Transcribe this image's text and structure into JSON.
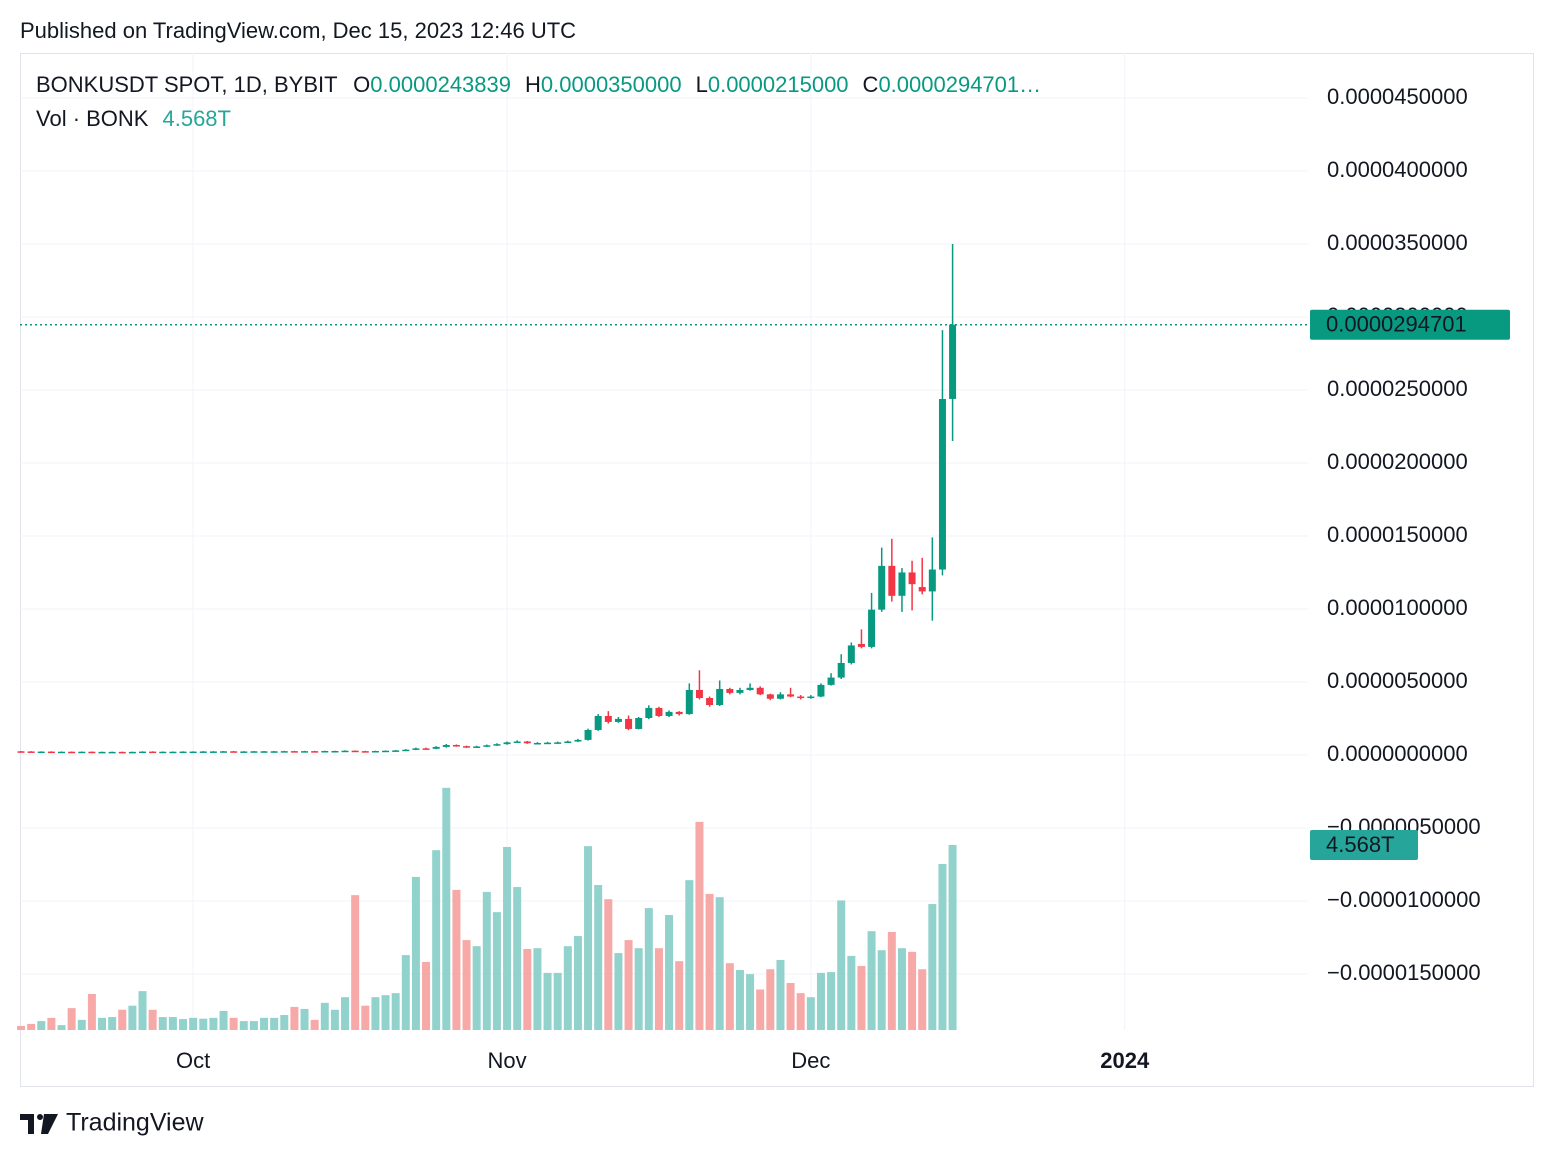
{
  "published": "Published on TradingView.com, Dec 15, 2023 12:46 UTC",
  "footer": "TradingView",
  "chart_data": {
    "type": "candlestick",
    "legend": {
      "symbol": "BONKUSDT SPOT, 1D, BYBIT",
      "items": [
        {
          "key": "O",
          "value": "0.0000243839"
        },
        {
          "key": "H",
          "value": "0.0000350000"
        },
        {
          "key": "L",
          "value": "0.0000215000"
        },
        {
          "key": "C",
          "value": "0.0000294701…"
        }
      ],
      "volume_title": "Vol · BONK",
      "volume_value": "4.568T"
    },
    "last_price_label": "0.0000294701",
    "up_color": "#089981",
    "down_color": "#f23645",
    "volume_up_color": "#92d2cc",
    "volume_down_color": "#f7a9a7",
    "open": [
      2.5e-07,
      2.4e-07,
      2.3e-07,
      2.3e-07,
      2.2e-07,
      2.2e-07,
      2.1e-07,
      2.2e-07,
      2e-07,
      2.1e-07,
      2.1e-07,
      2e-07,
      2.1e-07,
      2.3e-07,
      2.2e-07,
      2.2e-07,
      2.2e-07,
      2.3e-07,
      2.3e-07,
      2.4e-07,
      2.4e-07,
      2.5e-07,
      2.4e-07,
      2.4e-07,
      2.5e-07,
      2.5e-07,
      2.5e-07,
      2.6e-07,
      2.5e-07,
      2.6e-07,
      2.5e-07,
      2.7e-07,
      2.7e-07,
      2.9e-07,
      2.6e-07,
      2.5e-07,
      2.7e-07,
      2.9e-07,
      3.1e-07,
      3.6e-07,
      4.5e-07,
      4.2e-07,
      5.5e-07,
      6.8e-07,
      6e-07,
      5.2e-07,
      5.8e-07,
      6.6e-07,
      7.4e-07,
      8.6e-07,
      9.2e-07,
      8e-07,
      8.2e-07,
      8.4e-07,
      8.6e-07,
      9.2e-07,
      1.03e-06,
      1.71e-06,
      2.67e-06,
      2.26e-06,
      2.47e-06,
      1.78e-06,
      2.53e-06,
      3.22e-06,
      2.67e-06,
      2.95e-06,
      2.8e-06,
      4.45e-06,
      3.9e-06,
      3.42e-06,
      4.52e-06,
      4.25e-06,
      4.45e-06,
      4.6e-06,
      4.15e-06,
      3.85e-06,
      4.15e-06,
      4e-06,
      3.9e-06,
      4e-06,
      4.8e-06,
      5.3e-06,
      6.3e-06,
      7.6e-06,
      7.4e-06,
      9.95e-06,
      1.295e-05,
      1.09e-05,
      1.25e-05,
      1.15e-05,
      1.12e-05,
      1.27e-05,
      2.43839e-05
    ],
    "high": [
      2.7e-07,
      2.6e-07,
      2.5e-07,
      2.5e-07,
      2.4e-07,
      2.4e-07,
      2.4e-07,
      2.4e-07,
      2.3e-07,
      2.3e-07,
      2.3e-07,
      2.3e-07,
      2.5e-07,
      2.5e-07,
      2.4e-07,
      2.4e-07,
      2.5e-07,
      2.5e-07,
      2.6e-07,
      2.6e-07,
      2.7e-07,
      2.7e-07,
      2.6e-07,
      2.7e-07,
      2.7e-07,
      2.7e-07,
      2.8e-07,
      2.8e-07,
      2.8e-07,
      2.8e-07,
      2.9e-07,
      2.9e-07,
      3.2e-07,
      3.1e-07,
      2.8e-07,
      2.9e-07,
      3.1e-07,
      3.4e-07,
      4e-07,
      5e-07,
      5e-07,
      6e-07,
      7.5e-07,
      7.2e-07,
      6.4e-07,
      6.3e-07,
      7.1e-07,
      8e-07,
      9.2e-07,
      1e-06,
      9.6e-07,
      8.8e-07,
      9e-07,
      9.2e-07,
      9.8e-07,
      1.1e-06,
      1.8e-06,
      2.8e-06,
      3e-06,
      2.6e-06,
      2.7e-06,
      2.6e-06,
      3.4e-06,
      3.3e-06,
      3.05e-06,
      3e-06,
      4.9e-06,
      5.8e-06,
      4e-06,
      5.1e-06,
      4.6e-06,
      4.6e-06,
      4.9e-06,
      4.7e-06,
      4.2e-06,
      4.3e-06,
      4.6e-06,
      4.1e-06,
      4.1e-06,
      4.9e-06,
      5.6e-06,
      6.9e-06,
      7.7e-06,
      8.6e-06,
      1.11e-05,
      1.42e-05,
      1.48e-05,
      1.28e-05,
      1.33e-05,
      1.35e-05,
      1.49e-05,
      2.91e-05,
      3.5e-05
    ],
    "low": [
      2.2e-07,
      2.1e-07,
      2.1e-07,
      2e-07,
      2e-07,
      1.9e-07,
      1.9e-07,
      1.8e-07,
      1.8e-07,
      1.9e-07,
      1.8e-07,
      1.8e-07,
      1.9e-07,
      2e-07,
      2e-07,
      2e-07,
      2e-07,
      2.1e-07,
      2.1e-07,
      2.2e-07,
      2.2e-07,
      2.2e-07,
      2.2e-07,
      2.2e-07,
      2.3e-07,
      2.3e-07,
      2.3e-07,
      2.3e-07,
      2.3e-07,
      2.3e-07,
      2.3e-07,
      2.5e-07,
      2.5e-07,
      2.4e-07,
      2.3e-07,
      2.3e-07,
      2.5e-07,
      2.7e-07,
      2.9e-07,
      3.3e-07,
      3.8e-07,
      3.9e-07,
      5e-07,
      5.6e-07,
      4.8e-07,
      4.9e-07,
      5.5e-07,
      6.2e-07,
      7e-07,
      8.2e-07,
      7.6e-07,
      7.6e-07,
      7.9e-07,
      8.1e-07,
      8.3e-07,
      8.8e-07,
      9.8e-07,
      1.65e-06,
      2.15e-06,
      2.2e-06,
      1.7e-06,
      1.75e-06,
      2.45e-06,
      2.6e-06,
      2.6e-06,
      2.7e-06,
      2.75e-06,
      3.8e-06,
      3.3e-06,
      3.35e-06,
      4.15e-06,
      4.15e-06,
      4.4e-06,
      4.1e-06,
      3.75e-06,
      3.8e-06,
      3.95e-06,
      3.8e-06,
      3.85e-06,
      3.95e-06,
      4.75e-06,
      5.2e-06,
      6.2e-06,
      7.3e-06,
      7.3e-06,
      9.8e-06,
      1.05e-05,
      9.8e-06,
      9.9e-06,
      1.1e-05,
      9.2e-06,
      1.23e-05,
      2.15e-05
    ],
    "close": [
      2.4e-07,
      2.3e-07,
      2.3e-07,
      2.2e-07,
      2.2e-07,
      2.1e-07,
      2.2e-07,
      2e-07,
      2.1e-07,
      2.1e-07,
      2e-07,
      2.1e-07,
      2.3e-07,
      2.2e-07,
      2.2e-07,
      2.2e-07,
      2.3e-07,
      2.3e-07,
      2.4e-07,
      2.4e-07,
      2.5e-07,
      2.4e-07,
      2.4e-07,
      2.5e-07,
      2.5e-07,
      2.5e-07,
      2.6e-07,
      2.5e-07,
      2.6e-07,
      2.5e-07,
      2.7e-07,
      2.7e-07,
      2.9e-07,
      2.6e-07,
      2.5e-07,
      2.7e-07,
      2.9e-07,
      3.1e-07,
      3.6e-07,
      4.5e-07,
      4.2e-07,
      5.5e-07,
      6.8e-07,
      6e-07,
      5.2e-07,
      5.8e-07,
      6.6e-07,
      7.4e-07,
      8.6e-07,
      9.2e-07,
      8e-07,
      8.2e-07,
      8.4e-07,
      8.6e-07,
      9.2e-07,
      1.03e-06,
      1.71e-06,
      2.67e-06,
      2.26e-06,
      2.47e-06,
      1.78e-06,
      2.53e-06,
      3.22e-06,
      2.67e-06,
      2.95e-06,
      2.8e-06,
      4.45e-06,
      3.9e-06,
      3.42e-06,
      4.52e-06,
      4.25e-06,
      4.45e-06,
      4.6e-06,
      4.15e-06,
      3.85e-06,
      4.15e-06,
      4e-06,
      3.9e-06,
      4e-06,
      4.8e-06,
      5.3e-06,
      6.3e-06,
      7.5e-06,
      7.4e-06,
      9.95e-06,
      1.295e-05,
      1.09e-05,
      1.25e-05,
      1.17e-05,
      1.12e-05,
      1.27e-05,
      2.438e-05,
      2.94701e-05
    ],
    "volume": [
      0.1,
      0.15,
      0.22,
      0.3,
      0.12,
      0.54,
      0.25,
      0.89,
      0.3,
      0.32,
      0.5,
      0.6,
      0.96,
      0.5,
      0.32,
      0.32,
      0.27,
      0.3,
      0.28,
      0.3,
      0.47,
      0.3,
      0.22,
      0.22,
      0.3,
      0.3,
      0.37,
      0.57,
      0.52,
      0.25,
      0.67,
      0.5,
      0.81,
      3.33,
      0.6,
      0.81,
      0.86,
      0.91,
      1.85,
      3.78,
      1.68,
      4.44,
      5.98,
      3.46,
      2.22,
      2.07,
      3.41,
      2.91,
      4.52,
      3.53,
      2.0,
      2.02,
      1.41,
      1.41,
      2.07,
      2.32,
      4.54,
      3.58,
      3.23,
      1.9,
      2.22,
      2.02,
      3.01,
      2.02,
      2.84,
      1.7,
      3.7,
      5.14,
      3.36,
      3.28,
      1.65,
      1.48,
      1.38,
      1.0,
      1.5,
      1.73,
      1.16,
      0.91,
      0.81,
      1.41,
      1.43,
      3.2,
      1.83,
      1.58,
      2.44,
      1.97,
      2.42,
      2.02,
      1.93,
      1.5,
      3.11,
      4.1,
      4.568
    ],
    "volume_lim": [
      0,
      6.84
    ],
    "xlim": [
      -0.1,
      127.1
    ],
    "xticks": [
      {
        "value": 17,
        "label": "Oct"
      },
      {
        "value": 48,
        "label": "Nov"
      },
      {
        "value": 78,
        "label": "Dec"
      },
      {
        "value": 109,
        "label": "2024"
      }
    ],
    "ylim": [
      -1.884e-05,
      4.808e-05
    ],
    "yticks": [
      {
        "value": 4.5e-05,
        "label": "0.0000450000"
      },
      {
        "value": 4e-05,
        "label": "0.0000400000"
      },
      {
        "value": 3.5e-05,
        "label": "0.0000350000"
      },
      {
        "value": 3e-05,
        "label": "0.0000300000"
      },
      {
        "value": 2.5e-05,
        "label": "0.0000250000"
      },
      {
        "value": 2e-05,
        "label": "0.0000200000"
      },
      {
        "value": 1.5e-05,
        "label": "0.0000150000"
      },
      {
        "value": 1e-05,
        "label": "0.0000100000"
      },
      {
        "value": 5e-06,
        "label": "0.0000050000"
      },
      {
        "value": 0,
        "label": "0.0000000000"
      },
      {
        "value": -5e-06,
        "label": "−0.0000050000"
      },
      {
        "value": -1e-05,
        "label": "−0.0000100000"
      },
      {
        "value": -1.5e-05,
        "label": "−0.0000150000"
      }
    ],
    "grid": true
  }
}
